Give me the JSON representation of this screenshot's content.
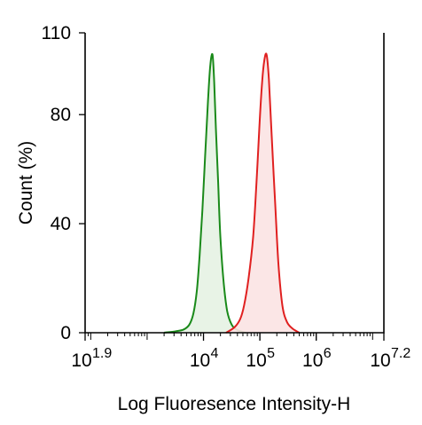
{
  "chart_data": {
    "type": "area",
    "title": "",
    "xlabel": "Log Fluoresence Intensity-H",
    "ylabel": "Count  (%)",
    "x_scale": "log10",
    "xlim": [
      1.9,
      7.2
    ],
    "ylim": [
      0,
      110
    ],
    "x_ticks": [
      {
        "base": "10",
        "exp": "1.9"
      },
      {
        "base": "10",
        "exp": "4"
      },
      {
        "base": "10",
        "exp": "5"
      },
      {
        "base": "10",
        "exp": "6"
      },
      {
        "base": "10",
        "exp": "7.2"
      }
    ],
    "y_ticks": [
      "0",
      "40",
      "80",
      "110"
    ],
    "grid": false,
    "legend": "none",
    "series": [
      {
        "color": "#1a8a1a",
        "fill": "#e6f2e3",
        "points": [
          [
            3.3,
            0
          ],
          [
            3.5,
            0.5
          ],
          [
            3.65,
            1.2
          ],
          [
            3.75,
            3
          ],
          [
            3.82,
            7
          ],
          [
            3.88,
            15
          ],
          [
            3.93,
            28
          ],
          [
            3.98,
            45
          ],
          [
            4.03,
            65
          ],
          [
            4.08,
            85
          ],
          [
            4.12,
            98
          ],
          [
            4.16,
            102
          ],
          [
            4.19,
            92
          ],
          [
            4.22,
            75
          ],
          [
            4.26,
            55
          ],
          [
            4.3,
            35
          ],
          [
            4.36,
            18
          ],
          [
            4.42,
            8
          ],
          [
            4.5,
            3
          ],
          [
            4.6,
            1
          ],
          [
            4.75,
            0
          ]
        ]
      },
      {
        "color": "#e02020",
        "fill": "#fbe3e3",
        "points": [
          [
            4.4,
            0
          ],
          [
            4.55,
            2
          ],
          [
            4.65,
            5
          ],
          [
            4.72,
            10
          ],
          [
            4.8,
            20
          ],
          [
            4.88,
            35
          ],
          [
            4.94,
            55
          ],
          [
            4.99,
            75
          ],
          [
            5.04,
            92
          ],
          [
            5.08,
            100
          ],
          [
            5.12,
            102
          ],
          [
            5.16,
            93
          ],
          [
            5.21,
            72
          ],
          [
            5.27,
            48
          ],
          [
            5.33,
            25
          ],
          [
            5.4,
            10
          ],
          [
            5.48,
            4
          ],
          [
            5.58,
            1.5
          ],
          [
            5.7,
            0
          ]
        ]
      }
    ]
  }
}
